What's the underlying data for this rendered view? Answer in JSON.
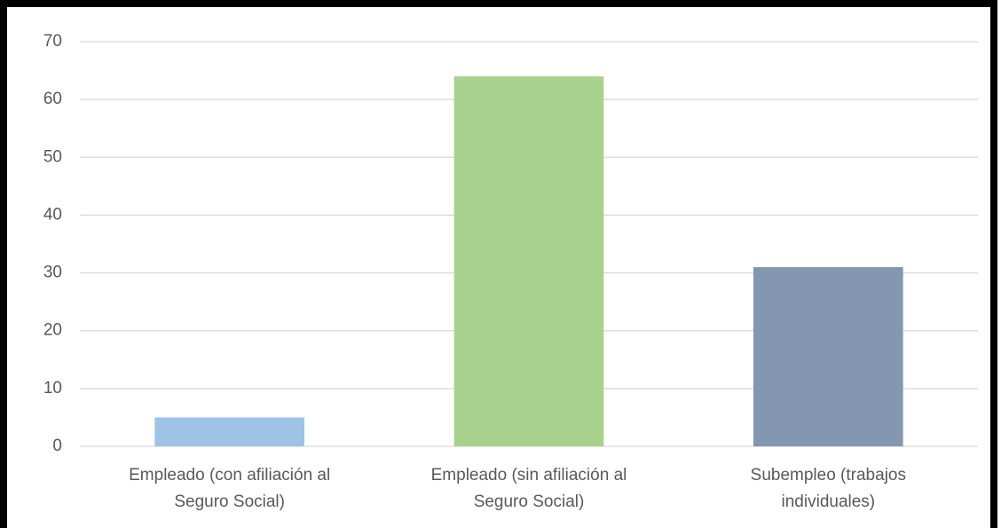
{
  "chart_data": {
    "type": "bar",
    "categories": [
      [
        "Empleado (con afiliación al",
        "Seguro Social)"
      ],
      [
        "Empleado (sin afiliación al",
        "Seguro Social)"
      ],
      [
        "Subempleo (trabajos",
        "individuales)"
      ]
    ],
    "values": [
      5,
      64,
      31
    ],
    "colors": [
      "#9dc3e6",
      "#a9d18e",
      "#8497b0"
    ],
    "ylim": [
      0,
      70
    ],
    "yticks": [
      0,
      10,
      20,
      30,
      40,
      50,
      60,
      70
    ],
    "grid": true
  }
}
